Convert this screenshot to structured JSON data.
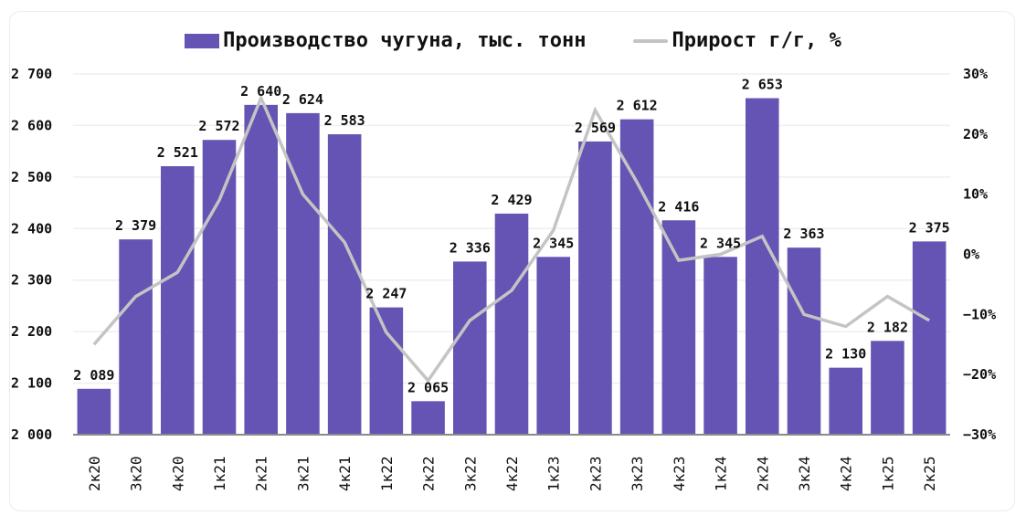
{
  "chart_data": {
    "type": "bar+line",
    "title": "",
    "legend": [
      {
        "name": "Производство чугуна, тыс. тонн",
        "type": "bar",
        "color": "#6554b3"
      },
      {
        "name": "Прирост г/г, %",
        "type": "line",
        "color": "#c4c4c4"
      }
    ],
    "legend_position": "top",
    "categories": [
      "2к20",
      "3к20",
      "4к20",
      "1к21",
      "2к21",
      "3к21",
      "4к21",
      "1к22",
      "2к22",
      "3к22",
      "4к22",
      "1к23",
      "2к23",
      "3к23",
      "4к23",
      "1к24",
      "2к24",
      "3к24",
      "4к24",
      "1к25",
      "2к25"
    ],
    "series": [
      {
        "name": "Производство чугуна, тыс. тонн",
        "axis": "left",
        "type": "bar",
        "values": [
          2089,
          2379,
          2521,
          2572,
          2640,
          2624,
          2583,
          2247,
          2065,
          2336,
          2429,
          2345,
          2569,
          2612,
          2416,
          2345,
          2653,
          2363,
          2130,
          2182,
          2375
        ],
        "labels": [
          "2 089",
          "2 379",
          "2 521",
          "2 572",
          "2 640",
          "2 624",
          "2 583",
          "2 247",
          "2 065",
          "2 336",
          "2 429",
          "2 345",
          "2 569",
          "2 612",
          "2 416",
          "2 345",
          "2 653",
          "2 363",
          "2 130",
          "2 182",
          "2 375"
        ]
      },
      {
        "name": "Прирост г/г, %",
        "axis": "right",
        "type": "line",
        "values": [
          -15,
          -7,
          -3,
          9,
          26,
          10,
          2,
          -13,
          -21,
          -11,
          -6,
          4,
          24,
          12,
          -1,
          0,
          3,
          -10,
          -12,
          -7,
          -11
        ]
      }
    ],
    "y_left": {
      "min": 2000,
      "max": 2700,
      "step": 100,
      "ticks": [
        "2 000",
        "2 100",
        "2 200",
        "2 300",
        "2 400",
        "2 500",
        "2 600",
        "2 700"
      ]
    },
    "y_right": {
      "min": -30,
      "max": 30,
      "step": 10,
      "ticks": [
        "-30%",
        "-20%",
        "-10%",
        "0%",
        "10%",
        "20%",
        "30%"
      ]
    },
    "xlabel": "",
    "ylabel": "",
    "grid": true
  },
  "colors": {
    "bar": "#6554b3",
    "line": "#c4c4c4",
    "grid": "#efefef",
    "axis": "#8a8a8a",
    "text": "#111111"
  }
}
